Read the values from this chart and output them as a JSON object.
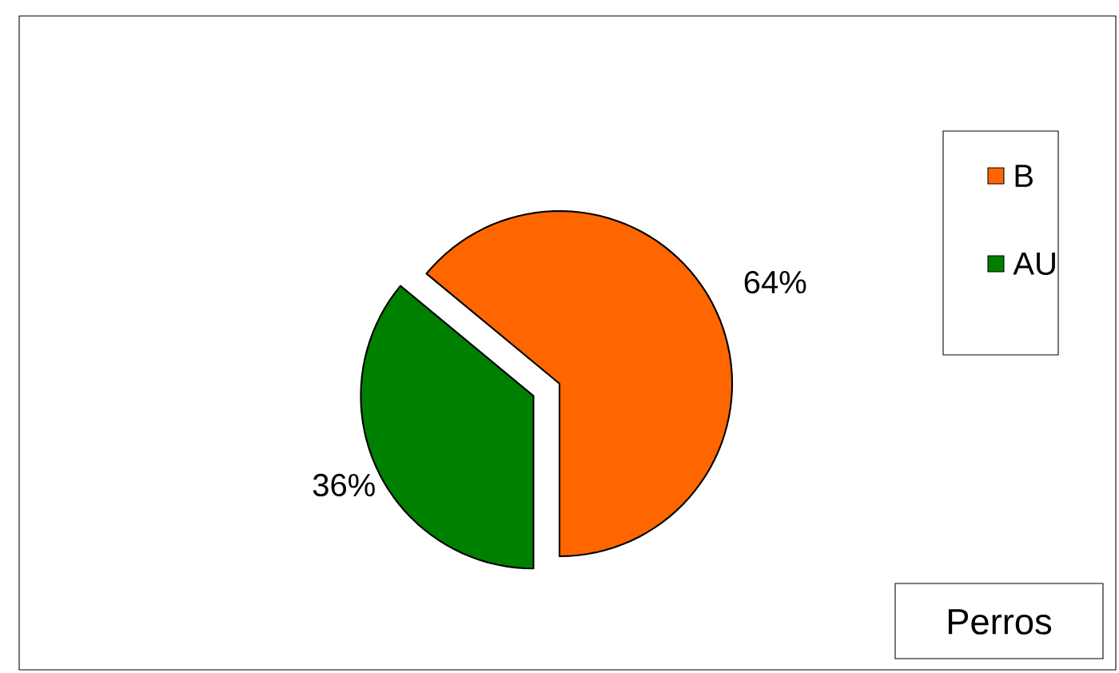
{
  "chart_data": {
    "type": "pie",
    "title": "Perros",
    "categories": [
      "B",
      "AU"
    ],
    "values": [
      64,
      36
    ],
    "colors": [
      "#ff6600",
      "#008000"
    ],
    "value_labels": [
      "64%",
      "36%"
    ],
    "legend": "top right"
  }
}
